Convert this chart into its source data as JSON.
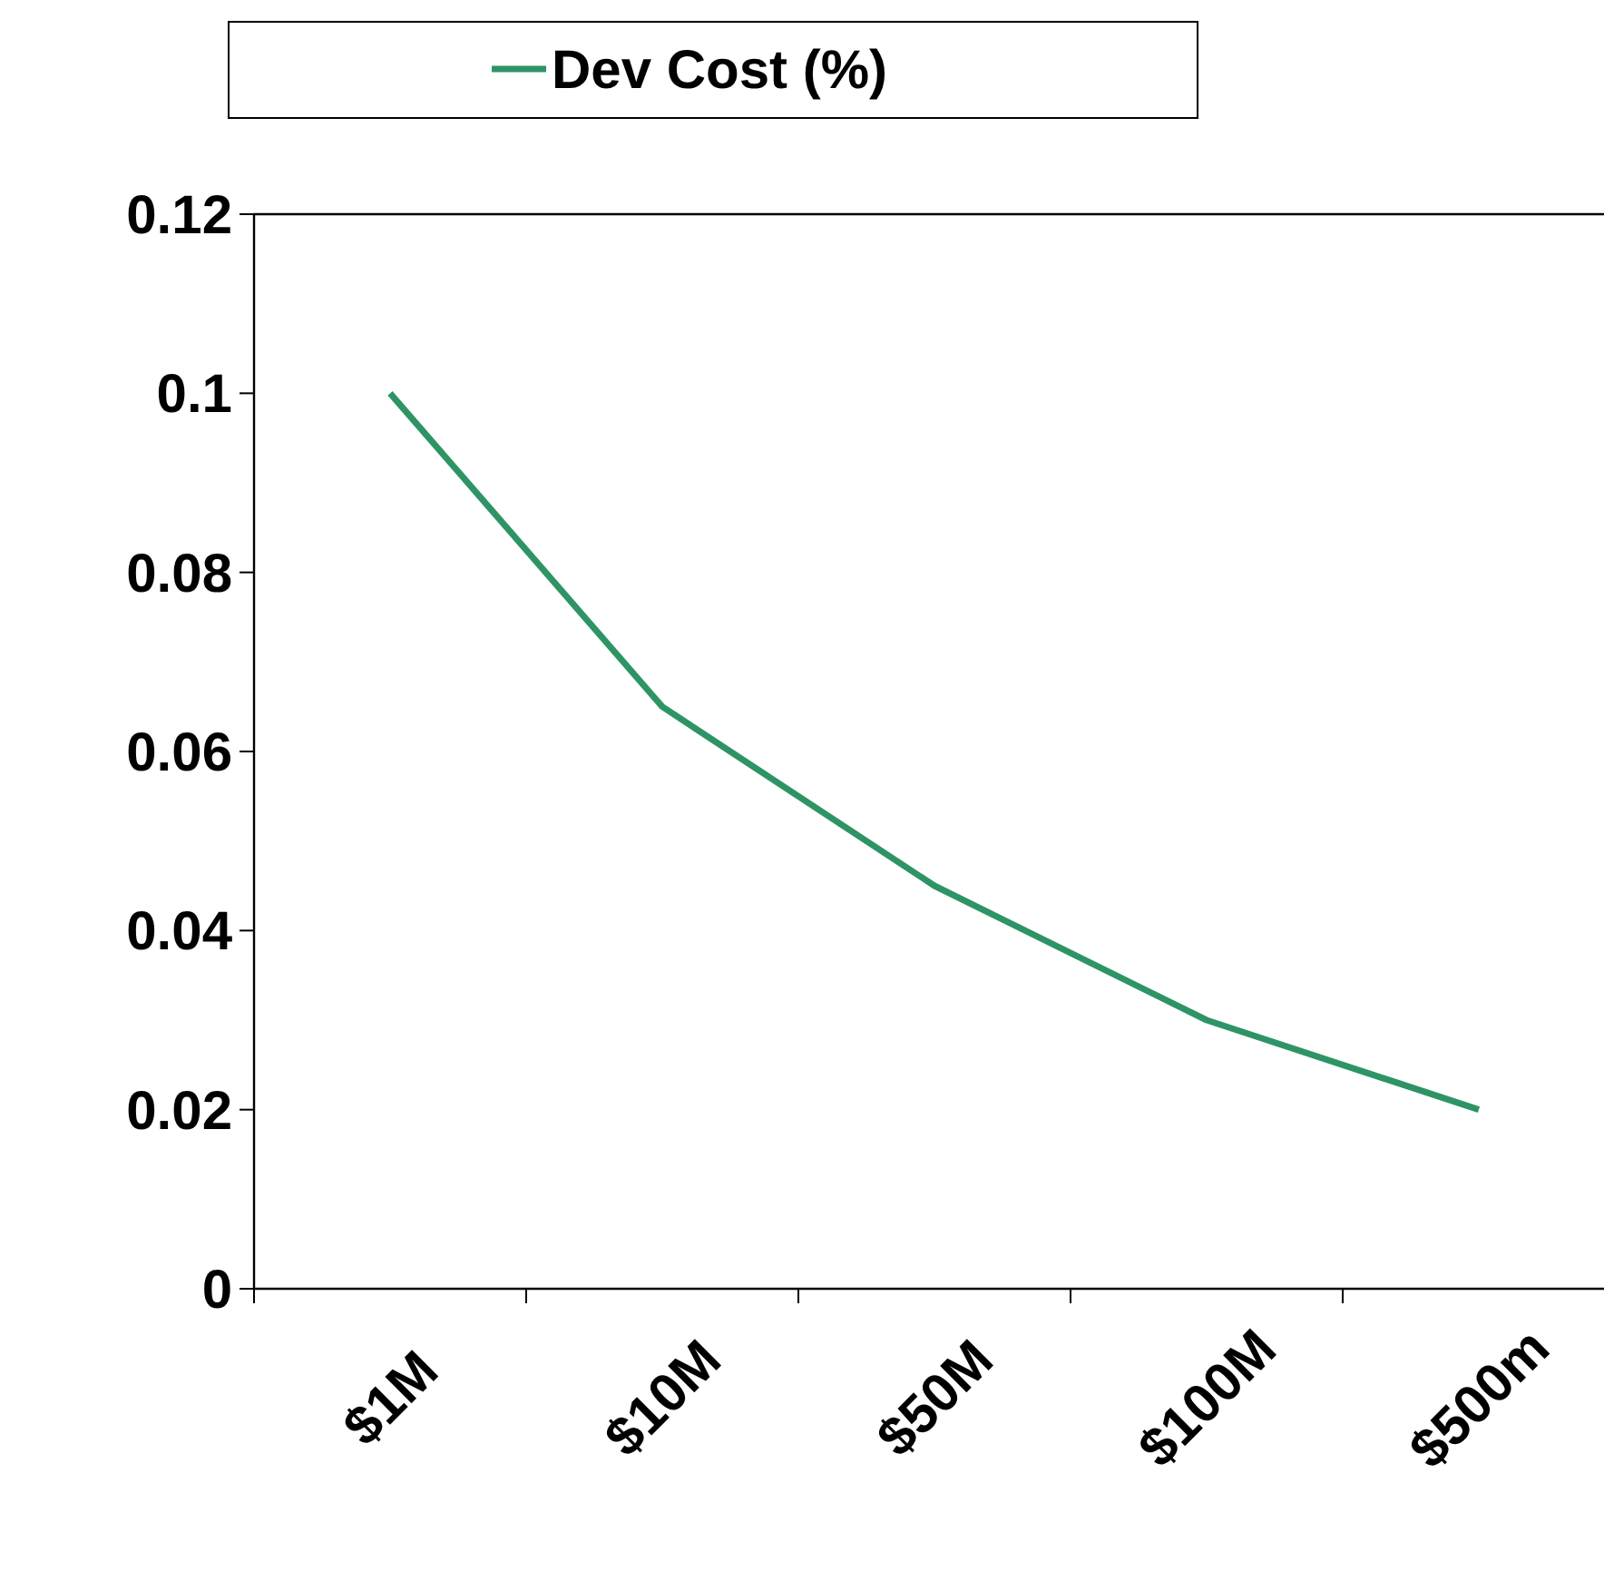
{
  "chart_data": {
    "type": "line",
    "categories": [
      "$1M",
      "$10M",
      "$50M",
      "$100M",
      "$500m"
    ],
    "series": [
      {
        "name": "Dev Cost (%)",
        "color": "#2e9466",
        "values": [
          0.1,
          0.065,
          0.045,
          0.03,
          0.02
        ]
      }
    ],
    "ylim": [
      0,
      0.12
    ],
    "yticks": [
      0,
      0.02,
      0.04,
      0.06,
      0.08,
      0.1,
      0.12
    ],
    "grid": false,
    "legend": "top",
    "marker": "none",
    "line_style": "solid"
  }
}
